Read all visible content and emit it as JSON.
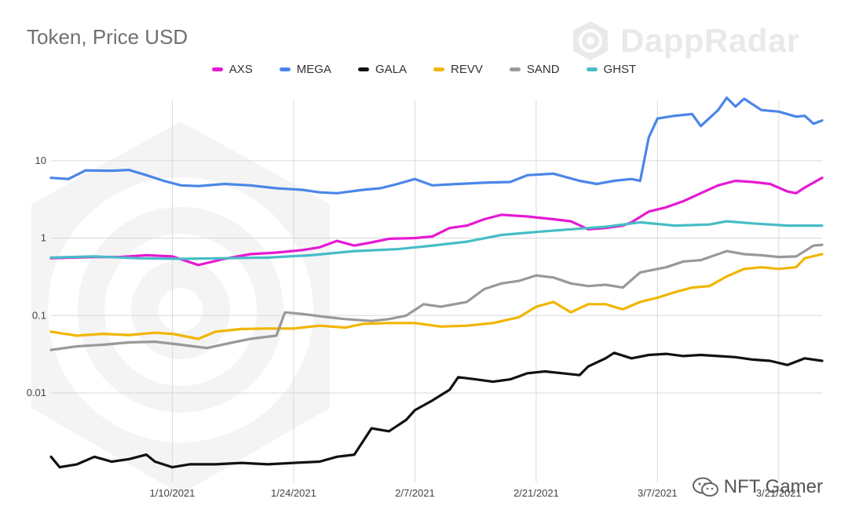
{
  "title": "Token, Price USD",
  "brand": {
    "name": "DappRadar",
    "color": "#e9e9e9"
  },
  "watermark_text": "NFT Gamer",
  "chart_data": {
    "type": "line",
    "title": "Token, Price USD",
    "y_scale": "log",
    "ylim": [
      0.0007,
      60
    ],
    "y_ticks": [
      {
        "value": 0.01,
        "label": "0.01"
      },
      {
        "value": 0.1,
        "label": "0.1"
      },
      {
        "value": 1,
        "label": "1"
      },
      {
        "value": 10,
        "label": "10"
      }
    ],
    "x_range": [
      "2020-12-27",
      "2021-03-26"
    ],
    "x_ticks": [
      {
        "date": "2021-01-10",
        "label": "1/10/2021"
      },
      {
        "date": "2021-01-24",
        "label": "1/24/2021"
      },
      {
        "date": "2021-02-07",
        "label": "2/7/2021"
      },
      {
        "date": "2021-02-21",
        "label": "2/21/2021"
      },
      {
        "date": "2021-03-07",
        "label": "3/7/2021"
      },
      {
        "date": "2021-03-21",
        "label": "3/21/2021"
      }
    ],
    "grid": true,
    "legend_position": "top-center",
    "series": [
      {
        "name": "AXS",
        "color": "#e619d3",
        "points": [
          [
            "2020-12-27",
            0.55
          ],
          [
            "2021-01-01",
            0.57
          ],
          [
            "2021-01-04",
            0.57
          ],
          [
            "2021-01-07",
            0.6
          ],
          [
            "2021-01-10",
            0.58
          ],
          [
            "2021-01-13",
            0.45
          ],
          [
            "2021-01-16",
            0.54
          ],
          [
            "2021-01-19",
            0.62
          ],
          [
            "2021-01-22",
            0.65
          ],
          [
            "2021-01-25",
            0.7
          ],
          [
            "2021-01-27",
            0.76
          ],
          [
            "2021-01-29",
            0.92
          ],
          [
            "2021-01-31",
            0.8
          ],
          [
            "2021-02-02",
            0.88
          ],
          [
            "2021-02-04",
            0.98
          ],
          [
            "2021-02-07",
            1.0
          ],
          [
            "2021-02-09",
            1.05
          ],
          [
            "2021-02-11",
            1.35
          ],
          [
            "2021-02-13",
            1.45
          ],
          [
            "2021-02-15",
            1.75
          ],
          [
            "2021-02-17",
            2.0
          ],
          [
            "2021-02-20",
            1.9
          ],
          [
            "2021-02-23",
            1.75
          ],
          [
            "2021-02-25",
            1.65
          ],
          [
            "2021-02-27",
            1.3
          ],
          [
            "2021-03-01",
            1.35
          ],
          [
            "2021-03-03",
            1.45
          ],
          [
            "2021-03-04",
            1.6
          ],
          [
            "2021-03-06",
            2.2
          ],
          [
            "2021-03-08",
            2.5
          ],
          [
            "2021-03-10",
            3.0
          ],
          [
            "2021-03-12",
            3.8
          ],
          [
            "2021-03-14",
            4.8
          ],
          [
            "2021-03-16",
            5.5
          ],
          [
            "2021-03-18",
            5.3
          ],
          [
            "2021-03-20",
            5.0
          ],
          [
            "2021-03-22",
            4.0
          ],
          [
            "2021-03-23",
            3.8
          ],
          [
            "2021-03-24",
            4.5
          ],
          [
            "2021-03-26",
            6.0
          ]
        ]
      },
      {
        "name": "MEGA",
        "color": "#4a86e8",
        "points": [
          [
            "2020-12-27",
            6.0
          ],
          [
            "2020-12-29",
            5.8
          ],
          [
            "2020-12-31",
            7.5
          ],
          [
            "2021-01-03",
            7.4
          ],
          [
            "2021-01-05",
            7.6
          ],
          [
            "2021-01-07",
            6.5
          ],
          [
            "2021-01-09",
            5.5
          ],
          [
            "2021-01-11",
            4.8
          ],
          [
            "2021-01-13",
            4.7
          ],
          [
            "2021-01-16",
            5.0
          ],
          [
            "2021-01-19",
            4.8
          ],
          [
            "2021-01-22",
            4.4
          ],
          [
            "2021-01-25",
            4.2
          ],
          [
            "2021-01-27",
            3.9
          ],
          [
            "2021-01-29",
            3.8
          ],
          [
            "2021-02-01",
            4.2
          ],
          [
            "2021-02-03",
            4.4
          ],
          [
            "2021-02-05",
            5.0
          ],
          [
            "2021-02-07",
            5.8
          ],
          [
            "2021-02-09",
            4.8
          ],
          [
            "2021-02-12",
            5.0
          ],
          [
            "2021-02-15",
            5.2
          ],
          [
            "2021-02-18",
            5.3
          ],
          [
            "2021-02-20",
            6.5
          ],
          [
            "2021-02-23",
            6.8
          ],
          [
            "2021-02-26",
            5.5
          ],
          [
            "2021-02-28",
            5.0
          ],
          [
            "2021-03-02",
            5.5
          ],
          [
            "2021-03-04",
            5.8
          ],
          [
            "2021-03-05",
            5.5
          ],
          [
            "2021-03-06",
            20
          ],
          [
            "2021-03-07",
            35
          ],
          [
            "2021-03-09",
            38
          ],
          [
            "2021-03-11",
            40
          ],
          [
            "2021-03-12",
            28
          ],
          [
            "2021-03-14",
            45
          ],
          [
            "2021-03-15",
            65
          ],
          [
            "2021-03-16",
            50
          ],
          [
            "2021-03-17",
            63
          ],
          [
            "2021-03-19",
            45
          ],
          [
            "2021-03-21",
            43
          ],
          [
            "2021-03-23",
            37
          ],
          [
            "2021-03-24",
            38
          ],
          [
            "2021-03-25",
            30
          ],
          [
            "2021-03-26",
            33
          ]
        ]
      },
      {
        "name": "GALA",
        "color": "#111111",
        "points": [
          [
            "2020-12-27",
            0.0015
          ],
          [
            "2020-12-28",
            0.0011
          ],
          [
            "2020-12-30",
            0.0012
          ],
          [
            "2021-01-01",
            0.0015
          ],
          [
            "2021-01-03",
            0.0013
          ],
          [
            "2021-01-05",
            0.0014
          ],
          [
            "2021-01-07",
            0.0016
          ],
          [
            "2021-01-08",
            0.0013
          ],
          [
            "2021-01-10",
            0.0011
          ],
          [
            "2021-01-12",
            0.0012
          ],
          [
            "2021-01-15",
            0.0012
          ],
          [
            "2021-01-18",
            0.00125
          ],
          [
            "2021-01-21",
            0.0012
          ],
          [
            "2021-01-24",
            0.00125
          ],
          [
            "2021-01-27",
            0.0013
          ],
          [
            "2021-01-29",
            0.0015
          ],
          [
            "2021-01-31",
            0.0016
          ],
          [
            "2021-02-02",
            0.0035
          ],
          [
            "2021-02-04",
            0.0032
          ],
          [
            "2021-02-06",
            0.0045
          ],
          [
            "2021-02-07",
            0.006
          ],
          [
            "2021-02-09",
            0.008
          ],
          [
            "2021-02-11",
            0.011
          ],
          [
            "2021-02-12",
            0.016
          ],
          [
            "2021-02-14",
            0.015
          ],
          [
            "2021-02-16",
            0.014
          ],
          [
            "2021-02-18",
            0.015
          ],
          [
            "2021-02-20",
            0.018
          ],
          [
            "2021-02-22",
            0.019
          ],
          [
            "2021-02-24",
            0.018
          ],
          [
            "2021-02-26",
            0.017
          ],
          [
            "2021-02-27",
            0.022
          ],
          [
            "2021-03-01",
            0.028
          ],
          [
            "2021-03-02",
            0.033
          ],
          [
            "2021-03-04",
            0.028
          ],
          [
            "2021-03-06",
            0.031
          ],
          [
            "2021-03-08",
            0.032
          ],
          [
            "2021-03-10",
            0.03
          ],
          [
            "2021-03-12",
            0.031
          ],
          [
            "2021-03-14",
            0.03
          ],
          [
            "2021-03-16",
            0.029
          ],
          [
            "2021-03-18",
            0.027
          ],
          [
            "2021-03-20",
            0.026
          ],
          [
            "2021-03-22",
            0.023
          ],
          [
            "2021-03-24",
            0.028
          ],
          [
            "2021-03-26",
            0.026
          ]
        ]
      },
      {
        "name": "REVV",
        "color": "#f1b500",
        "points": [
          [
            "2020-12-27",
            0.062
          ],
          [
            "2020-12-30",
            0.055
          ],
          [
            "2021-01-02",
            0.058
          ],
          [
            "2021-01-05",
            0.056
          ],
          [
            "2021-01-08",
            0.06
          ],
          [
            "2021-01-10",
            0.058
          ],
          [
            "2021-01-13",
            0.05
          ],
          [
            "2021-01-15",
            0.062
          ],
          [
            "2021-01-18",
            0.067
          ],
          [
            "2021-01-21",
            0.068
          ],
          [
            "2021-01-24",
            0.068
          ],
          [
            "2021-01-27",
            0.074
          ],
          [
            "2021-01-30",
            0.07
          ],
          [
            "2021-02-01",
            0.078
          ],
          [
            "2021-02-04",
            0.08
          ],
          [
            "2021-02-07",
            0.08
          ],
          [
            "2021-02-10",
            0.072
          ],
          [
            "2021-02-13",
            0.074
          ],
          [
            "2021-02-16",
            0.08
          ],
          [
            "2021-02-19",
            0.095
          ],
          [
            "2021-02-21",
            0.13
          ],
          [
            "2021-02-23",
            0.15
          ],
          [
            "2021-02-25",
            0.11
          ],
          [
            "2021-02-27",
            0.14
          ],
          [
            "2021-03-01",
            0.14
          ],
          [
            "2021-03-03",
            0.12
          ],
          [
            "2021-03-05",
            0.15
          ],
          [
            "2021-03-07",
            0.17
          ],
          [
            "2021-03-09",
            0.2
          ],
          [
            "2021-03-11",
            0.23
          ],
          [
            "2021-03-13",
            0.24
          ],
          [
            "2021-03-15",
            0.32
          ],
          [
            "2021-03-17",
            0.4
          ],
          [
            "2021-03-19",
            0.42
          ],
          [
            "2021-03-21",
            0.4
          ],
          [
            "2021-03-23",
            0.42
          ],
          [
            "2021-03-24",
            0.55
          ],
          [
            "2021-03-26",
            0.62
          ]
        ]
      },
      {
        "name": "SAND",
        "color": "#999999",
        "points": [
          [
            "2020-12-27",
            0.036
          ],
          [
            "2020-12-30",
            0.04
          ],
          [
            "2021-01-02",
            0.042
          ],
          [
            "2021-01-05",
            0.045
          ],
          [
            "2021-01-08",
            0.046
          ],
          [
            "2021-01-11",
            0.042
          ],
          [
            "2021-01-14",
            0.038
          ],
          [
            "2021-01-17",
            0.045
          ],
          [
            "2021-01-19",
            0.05
          ],
          [
            "2021-01-22",
            0.055
          ],
          [
            "2021-01-23",
            0.11
          ],
          [
            "2021-01-25",
            0.105
          ],
          [
            "2021-01-28",
            0.095
          ],
          [
            "2021-01-30",
            0.09
          ],
          [
            "2021-02-02",
            0.085
          ],
          [
            "2021-02-04",
            0.09
          ],
          [
            "2021-02-06",
            0.1
          ],
          [
            "2021-02-08",
            0.14
          ],
          [
            "2021-02-10",
            0.13
          ],
          [
            "2021-02-13",
            0.15
          ],
          [
            "2021-02-15",
            0.22
          ],
          [
            "2021-02-17",
            0.26
          ],
          [
            "2021-02-19",
            0.28
          ],
          [
            "2021-02-21",
            0.33
          ],
          [
            "2021-02-23",
            0.31
          ],
          [
            "2021-02-25",
            0.26
          ],
          [
            "2021-02-27",
            0.24
          ],
          [
            "2021-03-01",
            0.25
          ],
          [
            "2021-03-03",
            0.23
          ],
          [
            "2021-03-05",
            0.36
          ],
          [
            "2021-03-08",
            0.42
          ],
          [
            "2021-03-10",
            0.5
          ],
          [
            "2021-03-12",
            0.52
          ],
          [
            "2021-03-15",
            0.68
          ],
          [
            "2021-03-17",
            0.62
          ],
          [
            "2021-03-19",
            0.6
          ],
          [
            "2021-03-21",
            0.57
          ],
          [
            "2021-03-23",
            0.58
          ],
          [
            "2021-03-25",
            0.8
          ],
          [
            "2021-03-26",
            0.82
          ]
        ]
      },
      {
        "name": "GHST",
        "color": "#46bdc6",
        "points": [
          [
            "2020-12-27",
            0.56
          ],
          [
            "2021-01-01",
            0.58
          ],
          [
            "2021-01-06",
            0.55
          ],
          [
            "2021-01-11",
            0.54
          ],
          [
            "2021-01-16",
            0.55
          ],
          [
            "2021-01-21",
            0.56
          ],
          [
            "2021-01-26",
            0.6
          ],
          [
            "2021-01-31",
            0.68
          ],
          [
            "2021-02-05",
            0.72
          ],
          [
            "2021-02-09",
            0.8
          ],
          [
            "2021-02-13",
            0.9
          ],
          [
            "2021-02-17",
            1.1
          ],
          [
            "2021-02-21",
            1.2
          ],
          [
            "2021-02-25",
            1.3
          ],
          [
            "2021-03-01",
            1.4
          ],
          [
            "2021-03-05",
            1.6
          ],
          [
            "2021-03-09",
            1.45
          ],
          [
            "2021-03-13",
            1.5
          ],
          [
            "2021-03-15",
            1.65
          ],
          [
            "2021-03-18",
            1.55
          ],
          [
            "2021-03-22",
            1.45
          ],
          [
            "2021-03-26",
            1.45
          ]
        ]
      }
    ]
  }
}
